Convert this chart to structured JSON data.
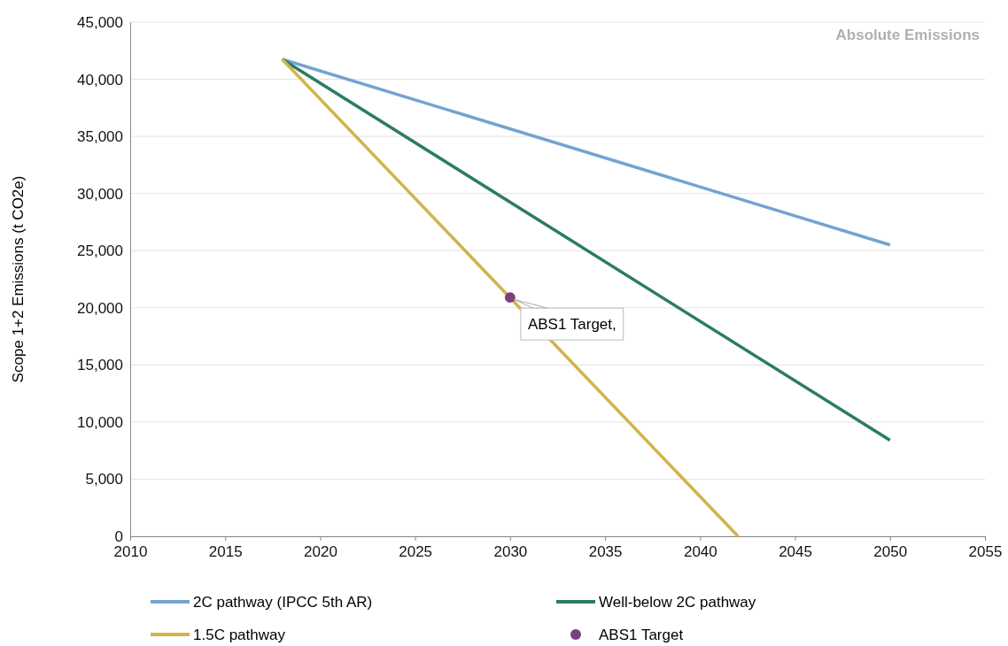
{
  "chart_data": {
    "type": "line",
    "ylabel": "Scope 1+2 Emissions (t CO2e)",
    "xlim": [
      2010,
      2055
    ],
    "xticks": [
      2010,
      2015,
      2020,
      2025,
      2030,
      2035,
      2040,
      2045,
      2050,
      2055
    ],
    "ylim": [
      0,
      45000
    ],
    "yticks": [
      {
        "value": 0,
        "label": "0"
      },
      {
        "value": 5000,
        "label": "5,000"
      },
      {
        "value": 10000,
        "label": "10,000"
      },
      {
        "value": 15000,
        "label": "15,000"
      },
      {
        "value": 20000,
        "label": "20,000"
      },
      {
        "value": 25000,
        "label": "25,000"
      },
      {
        "value": 30000,
        "label": "30,000"
      },
      {
        "value": 35000,
        "label": "35,000"
      },
      {
        "value": 40000,
        "label": "40,000"
      },
      {
        "value": 45000,
        "label": "45,000"
      }
    ],
    "grid": "y",
    "legend": "bottom",
    "series": [
      {
        "name": "2C pathway (IPCC 5th AR)",
        "color": "#74a3d2",
        "x": [
          2018,
          2050
        ],
        "values": [
          41750,
          25500
        ]
      },
      {
        "name": "Well-below 2C pathway",
        "color": "#2c7a67",
        "x": [
          2018,
          2050
        ],
        "values": [
          41750,
          8400
        ]
      },
      {
        "name": "1.5C pathway",
        "color": "#d2b34c",
        "x": [
          2018,
          2042
        ],
        "values": [
          41750,
          0
        ]
      },
      {
        "name": "ABS1 Target",
        "type": "scatter",
        "marker": "circle",
        "color": "#7b3f7e",
        "x": [
          2030
        ],
        "values": [
          20900
        ]
      }
    ],
    "annotations": [
      "Absolute Emissions",
      {
        "text": "ABS1 Target,",
        "x": 2030,
        "y": 20900
      }
    ]
  }
}
